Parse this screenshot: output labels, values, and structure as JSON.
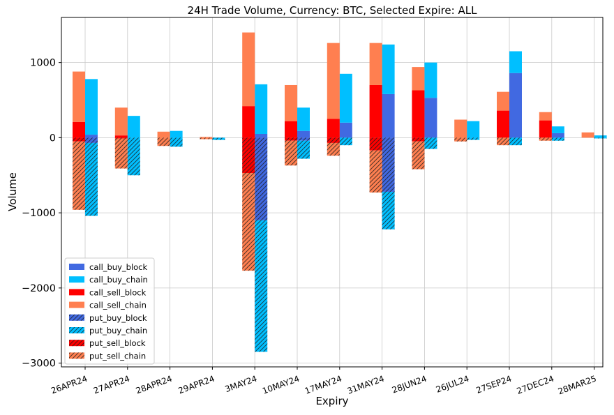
{
  "chart_data": {
    "type": "bar",
    "title": "24H Trade Volume, Currency: BTC, Selected Expire: ALL",
    "xlabel": "Expiry",
    "ylabel": "Volume",
    "ylim": [
      -3050,
      1600
    ],
    "yticks": [
      -3000,
      -2000,
      -1000,
      0,
      1000
    ],
    "ytick_labels": [
      "−3000",
      "−2000",
      "−1000",
      "0",
      "1000"
    ],
    "grid": true,
    "legend_position": "lower-left",
    "categories": [
      "26APR24",
      "27APR24",
      "28APR24",
      "29APR24",
      "3MAY24",
      "10MAY24",
      "17MAY24",
      "31MAY24",
      "28JUN24",
      "26JUL24",
      "27SEP24",
      "27DEC24",
      "28MAR25"
    ],
    "colors": {
      "call_buy_block": "#4169e1",
      "call_buy_chain": "#00bfff",
      "call_sell_block": "#ff0000",
      "call_sell_chain": "#ff7f50"
    },
    "series": [
      {
        "name": "call_buy_block",
        "group": "buy",
        "sign": 1,
        "hatch": false,
        "values": [
          40,
          0,
          0,
          0,
          50,
          90,
          200,
          580,
          530,
          0,
          860,
          60,
          0
        ]
      },
      {
        "name": "call_buy_chain",
        "group": "buy",
        "sign": 1,
        "hatch": false,
        "values": [
          740,
          290,
          90,
          0,
          660,
          310,
          650,
          660,
          470,
          220,
          290,
          90,
          30
        ]
      },
      {
        "name": "call_sell_block",
        "group": "sell",
        "sign": 1,
        "hatch": false,
        "values": [
          210,
          30,
          0,
          0,
          420,
          220,
          250,
          700,
          630,
          0,
          360,
          230,
          0
        ]
      },
      {
        "name": "call_sell_chain",
        "group": "sell",
        "sign": 1,
        "hatch": false,
        "values": [
          670,
          370,
          80,
          10,
          980,
          480,
          1010,
          560,
          310,
          240,
          250,
          110,
          70
        ]
      },
      {
        "name": "put_buy_block",
        "group": "buy",
        "sign": -1,
        "hatch": true,
        "values": [
          70,
          0,
          0,
          0,
          1100,
          40,
          0,
          720,
          0,
          0,
          0,
          0,
          0
        ]
      },
      {
        "name": "put_buy_chain",
        "group": "buy",
        "sign": -1,
        "hatch": true,
        "values": [
          970,
          500,
          120,
          30,
          1750,
          240,
          100,
          500,
          150,
          30,
          100,
          40,
          10
        ]
      },
      {
        "name": "put_sell_block",
        "group": "sell",
        "sign": -1,
        "hatch": true,
        "values": [
          50,
          10,
          0,
          0,
          470,
          40,
          70,
          170,
          50,
          0,
          0,
          0,
          0
        ]
      },
      {
        "name": "put_sell_chain",
        "group": "sell",
        "sign": -1,
        "hatch": true,
        "values": [
          910,
          400,
          110,
          20,
          1300,
          330,
          170,
          560,
          370,
          50,
          100,
          40,
          0
        ]
      }
    ]
  }
}
